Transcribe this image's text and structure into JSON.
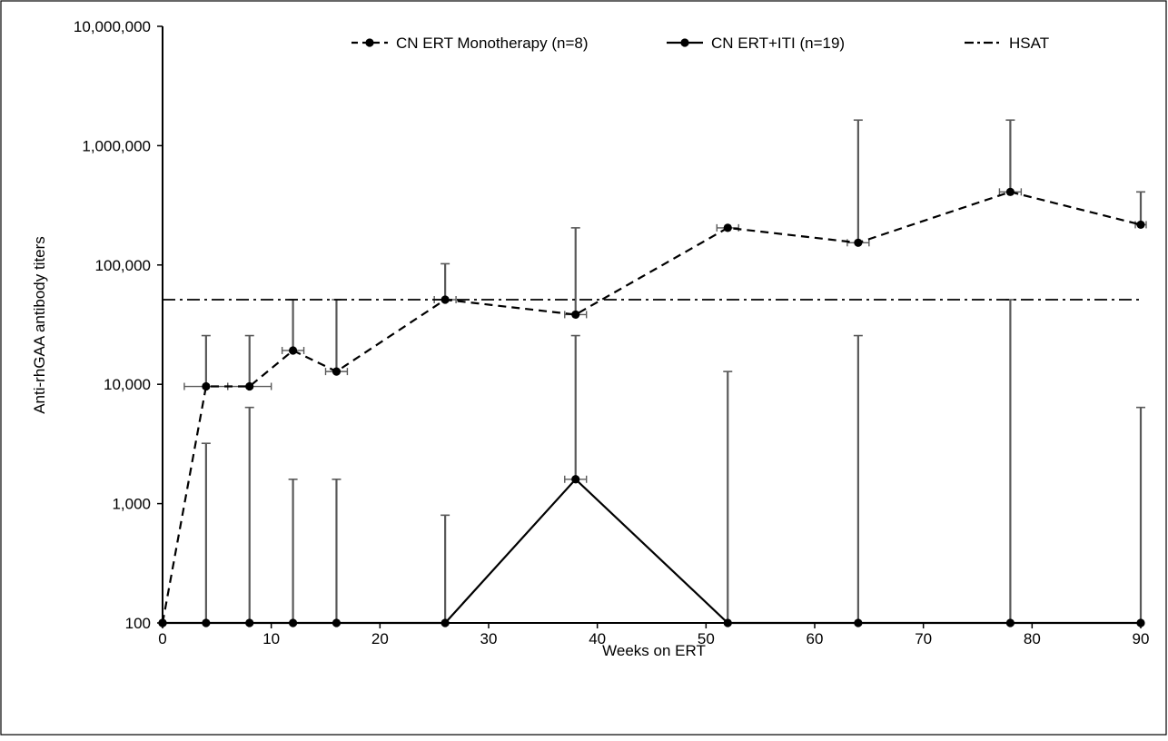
{
  "chart_data": {
    "type": "line",
    "xlabel": "Weeks on ERT",
    "ylabel": "Anti-rhGAA antibody titers",
    "x_scale": "linear",
    "y_scale": "log",
    "xlim": [
      0,
      90
    ],
    "ylim": [
      100,
      10000000
    ],
    "x_ticks": [
      0,
      10,
      20,
      30,
      40,
      50,
      60,
      70,
      80,
      90
    ],
    "x_tick_labels": [
      "0",
      "10",
      "20",
      "30",
      "40",
      "50",
      "60",
      "70",
      "80",
      "90"
    ],
    "y_ticks": [
      100,
      1000,
      10000,
      100000,
      1000000,
      10000000
    ],
    "y_tick_labels": [
      "100",
      "1,000",
      "10,000",
      "100,000",
      "1,000,000",
      "10,000,000"
    ],
    "grid": false,
    "legend_position": "top",
    "series": [
      {
        "name": "CN ERT Monotherapy (n=8)",
        "style": "dashed",
        "color": "#000000",
        "x": [
          0,
          4,
          8,
          12,
          16,
          26,
          38,
          52,
          64,
          78,
          90
        ],
        "y": [
          100,
          9600,
          9600,
          19200,
          12800,
          51200,
          38400,
          204800,
          153600,
          409600,
          217600
        ],
        "y_error_upper": [
          null,
          25600,
          25600,
          51200,
          51200,
          102400,
          204800,
          null,
          1638400,
          1638400,
          409600
        ],
        "x_error": [
          null,
          2,
          2,
          1,
          1,
          1,
          1,
          1,
          1,
          1,
          0.5
        ]
      },
      {
        "name": "CN ERT+ITI (n=19)",
        "style": "solid",
        "color": "#000000",
        "x": [
          0,
          4,
          8,
          12,
          16,
          26,
          38,
          52,
          64,
          78,
          90
        ],
        "y": [
          100,
          100,
          100,
          100,
          100,
          100,
          1600,
          100,
          100,
          100,
          100
        ],
        "y_error_upper": [
          null,
          3200,
          6400,
          1600,
          1600,
          800,
          25600,
          12800,
          25600,
          51200,
          6400
        ],
        "x_error": [
          null,
          null,
          null,
          null,
          null,
          null,
          1,
          null,
          null,
          null,
          null
        ]
      },
      {
        "name": "HSAT",
        "style": "dash-dot",
        "color": "#000000",
        "y_constant": 51200
      }
    ],
    "error_bar_color": "#595959"
  }
}
